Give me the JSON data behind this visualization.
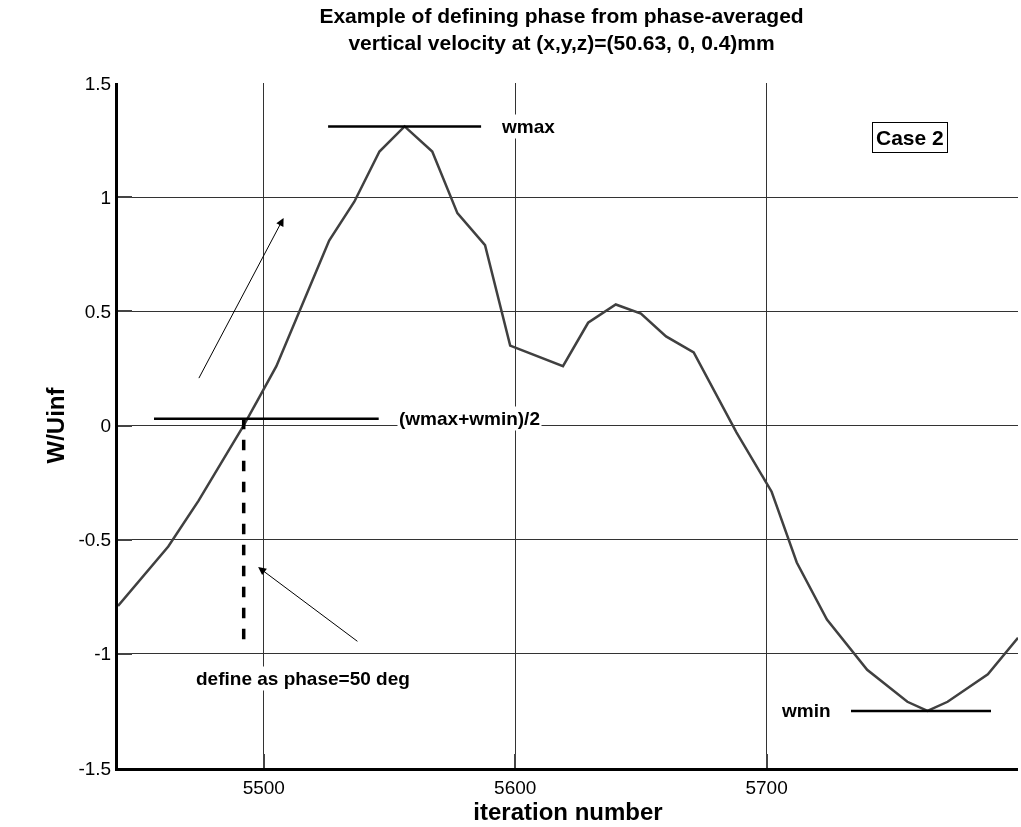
{
  "chart_data": {
    "type": "line",
    "title": "Example of defining phase from phase-averaged\nvertical velocity at (x,y,z)=(50.63, 0, 0.4)mm",
    "xlabel": "iteration number",
    "ylabel": "W/Uinf",
    "x": [
      5442,
      5462,
      5474,
      5492,
      5505,
      5526,
      5536,
      5546,
      5556,
      5567,
      5577,
      5588,
      5598,
      5619,
      5629,
      5640,
      5650,
      5660,
      5671,
      5688,
      5702,
      5712,
      5724,
      5740,
      5756,
      5764,
      5772,
      5788,
      5800
    ],
    "series": [
      {
        "color": "#404040",
        "values": [
          -0.79,
          -0.53,
          -0.33,
          0.0,
          0.26,
          0.81,
          0.98,
          1.2,
          1.31,
          1.2,
          0.93,
          0.79,
          0.35,
          0.26,
          0.45,
          0.53,
          0.49,
          0.39,
          0.32,
          -0.03,
          -0.29,
          -0.6,
          -0.85,
          -1.07,
          -1.21,
          -1.25,
          -1.21,
          -1.09,
          -0.93
        ]
      }
    ],
    "xlim": [
      5442,
      5800
    ],
    "xticks": [
      5500,
      5600,
      5700
    ],
    "ylim": [
      -1.5,
      1.5
    ],
    "yticks": [
      -1.5,
      -1,
      -0.5,
      0,
      0.5,
      1,
      1.5
    ],
    "grid": true,
    "marker": "none",
    "line_style": "solid",
    "ref_lines": [
      {
        "axis": "y",
        "value": 1.31,
        "label": "wmax",
        "color": "#000000",
        "line_style": "solid"
      },
      {
        "axis": "y",
        "value": 0.03,
        "label": "(wmax+wmin)/2",
        "color": "#000000",
        "line_style": "solid"
      },
      {
        "axis": "y",
        "value": -1.25,
        "label": "wmin",
        "color": "#000000",
        "line_style": "solid"
      },
      {
        "axis": "x",
        "value": 5492,
        "color": "#000000",
        "line_style": "dashed"
      }
    ],
    "annotations": [
      "Case 2",
      {
        "text": "define as phase=50 deg",
        "x": 5492,
        "y": -0.95
      }
    ]
  }
}
